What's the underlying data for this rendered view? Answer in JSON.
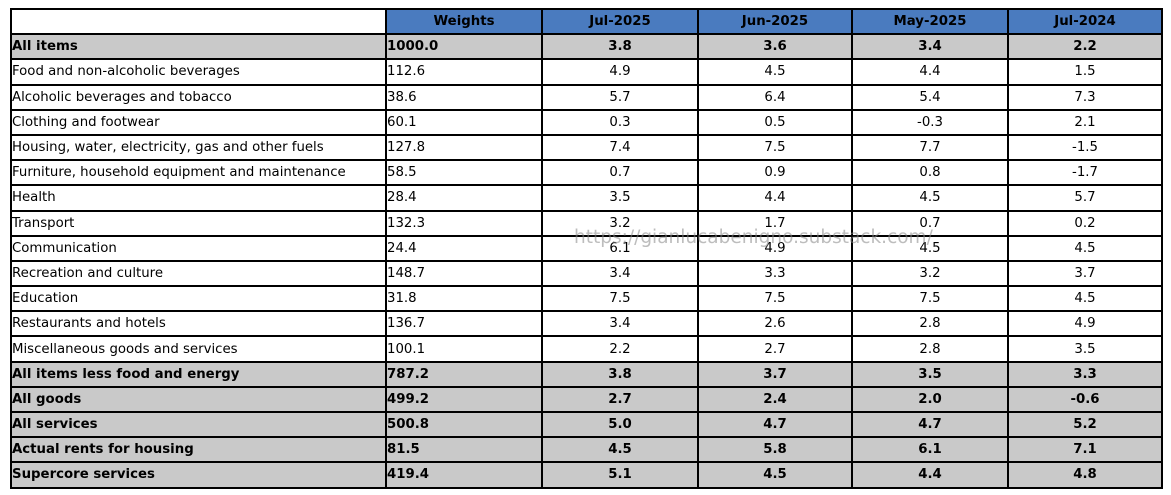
{
  "watermark": "https://gianlucabenigno.substack.com/",
  "colors": {
    "header_bg": "#4a7bbf",
    "header_text": "#ffffff",
    "summary_row_bg": "#c9c9c9",
    "body_row_bg": "#ffffff",
    "border": "#000000",
    "watermark_text": "#878787"
  },
  "chart_data": {
    "type": "table",
    "columns": [
      "Weights",
      "Jul-2025",
      "Jun-2025",
      "May-2025",
      "Jul-2024"
    ],
    "rows": [
      {
        "label": "All items",
        "weight": "1000.0",
        "values": [
          "3.8",
          "3.6",
          "3.4",
          "2.2"
        ],
        "bold": true
      },
      {
        "label": "Food and non-alcoholic beverages",
        "weight": "112.6",
        "values": [
          "4.9",
          "4.5",
          "4.4",
          "1.5"
        ],
        "bold": false
      },
      {
        "label": "Alcoholic beverages and tobacco",
        "weight": "38.6",
        "values": [
          "5.7",
          "6.4",
          "5.4",
          "7.3"
        ],
        "bold": false
      },
      {
        "label": "Clothing and footwear",
        "weight": "60.1",
        "values": [
          "0.3",
          "0.5",
          "-0.3",
          "2.1"
        ],
        "bold": false
      },
      {
        "label": "Housing, water, electricity, gas and other fuels",
        "weight": "127.8",
        "values": [
          "7.4",
          "7.5",
          "7.7",
          "-1.5"
        ],
        "bold": false
      },
      {
        "label": "Furniture, household equipment and maintenance",
        "weight": "58.5",
        "values": [
          "0.7",
          "0.9",
          "0.8",
          "-1.7"
        ],
        "bold": false
      },
      {
        "label": "Health",
        "weight": "28.4",
        "values": [
          "3.5",
          "4.4",
          "4.5",
          "5.7"
        ],
        "bold": false
      },
      {
        "label": "Transport",
        "weight": "132.3",
        "values": [
          "3.2",
          "1.7",
          "0.7",
          "0.2"
        ],
        "bold": false
      },
      {
        "label": "Communication",
        "weight": "24.4",
        "values": [
          "6.1",
          "4.9",
          "4.5",
          "4.5"
        ],
        "bold": false
      },
      {
        "label": "Recreation and culture",
        "weight": "148.7",
        "values": [
          "3.4",
          "3.3",
          "3.2",
          "3.7"
        ],
        "bold": false
      },
      {
        "label": "Education",
        "weight": "31.8",
        "values": [
          "7.5",
          "7.5",
          "7.5",
          "4.5"
        ],
        "bold": false
      },
      {
        "label": "Restaurants and hotels",
        "weight": "136.7",
        "values": [
          "3.4",
          "2.6",
          "2.8",
          "4.9"
        ],
        "bold": false
      },
      {
        "label": "Miscellaneous goods and services",
        "weight": "100.1",
        "values": [
          "2.2",
          "2.7",
          "2.8",
          "3.5"
        ],
        "bold": false
      },
      {
        "label": "All items less food and energy",
        "weight": "787.2",
        "values": [
          "3.8",
          "3.7",
          "3.5",
          "3.3"
        ],
        "bold": true
      },
      {
        "label": "All goods",
        "weight": "499.2",
        "values": [
          "2.7",
          "2.4",
          "2.0",
          "-0.6"
        ],
        "bold": true
      },
      {
        "label": "All services",
        "weight": "500.8",
        "values": [
          "5.0",
          "4.7",
          "4.7",
          "5.2"
        ],
        "bold": true
      },
      {
        "label": "Actual rents for housing",
        "weight": "81.5",
        "values": [
          "4.5",
          "5.8",
          "6.1",
          "7.1"
        ],
        "bold": true
      },
      {
        "label": "Supercore services",
        "weight": "419.4",
        "values": [
          "5.1",
          "4.5",
          "4.4",
          "4.8"
        ],
        "bold": true
      }
    ]
  }
}
